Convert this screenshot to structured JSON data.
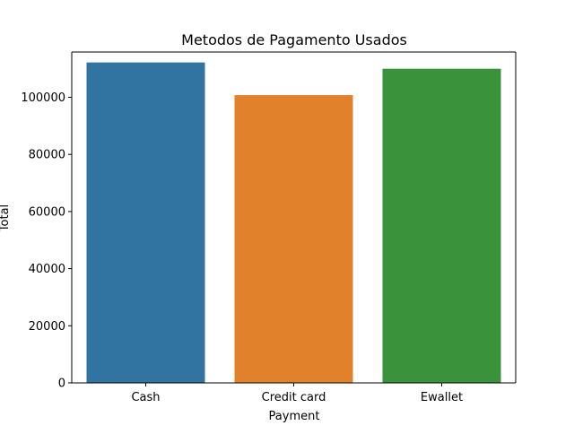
{
  "chart_data": {
    "type": "bar",
    "title": "Metodos de Pagamento Usados",
    "xlabel": "Payment",
    "ylabel": "Total",
    "categories": [
      "Cash",
      "Credit card",
      "Ewallet"
    ],
    "values": [
      112207,
      100767,
      109993
    ],
    "colors": [
      "#3274a1",
      "#e1812c",
      "#3a923a"
    ],
    "ylim": [
      0,
      115862
    ],
    "yticks": [
      0,
      20000,
      40000,
      60000,
      80000,
      100000
    ],
    "ytick_labels": [
      "0",
      "20000",
      "40000",
      "60000",
      "80000",
      "100000"
    ],
    "grid": false,
    "legend": "none"
  }
}
